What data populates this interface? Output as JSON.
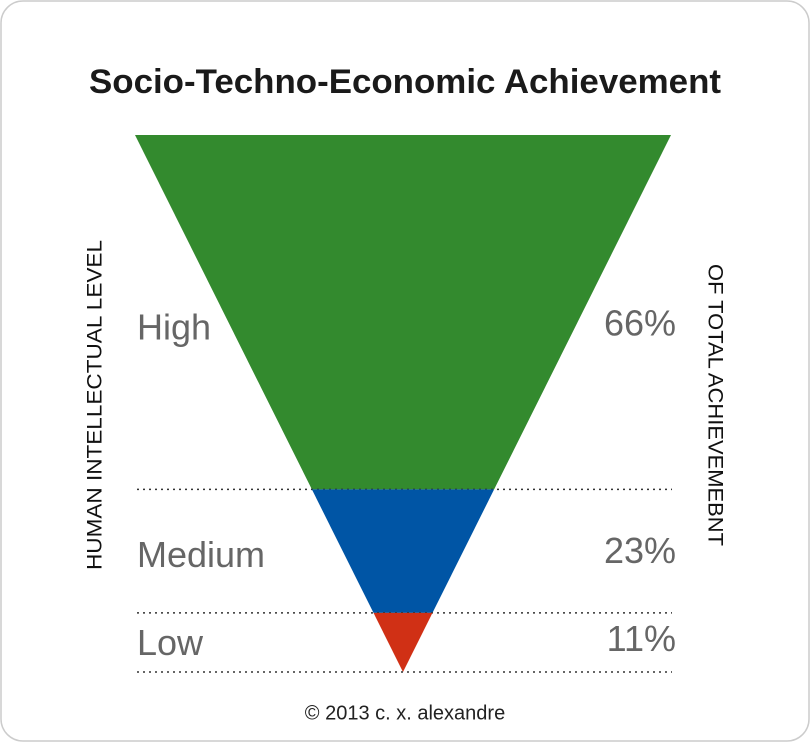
{
  "chart_data": {
    "type": "funnel",
    "title": "Socio-Techno-Economic Achievement",
    "y_label": "HUMAN INTELLECTUAL LEVEL",
    "y2_label": "OF TOTAL ACHIEVEMEBNT",
    "categories": [
      "High",
      "Medium",
      "Low"
    ],
    "values": [
      66,
      23,
      11
    ],
    "value_labels": [
      "66%",
      "23%",
      "11%"
    ],
    "colors": [
      "#338a2e",
      "#0055a5",
      "#d03015"
    ],
    "footer": "© 2013 c. x. alexandre"
  }
}
